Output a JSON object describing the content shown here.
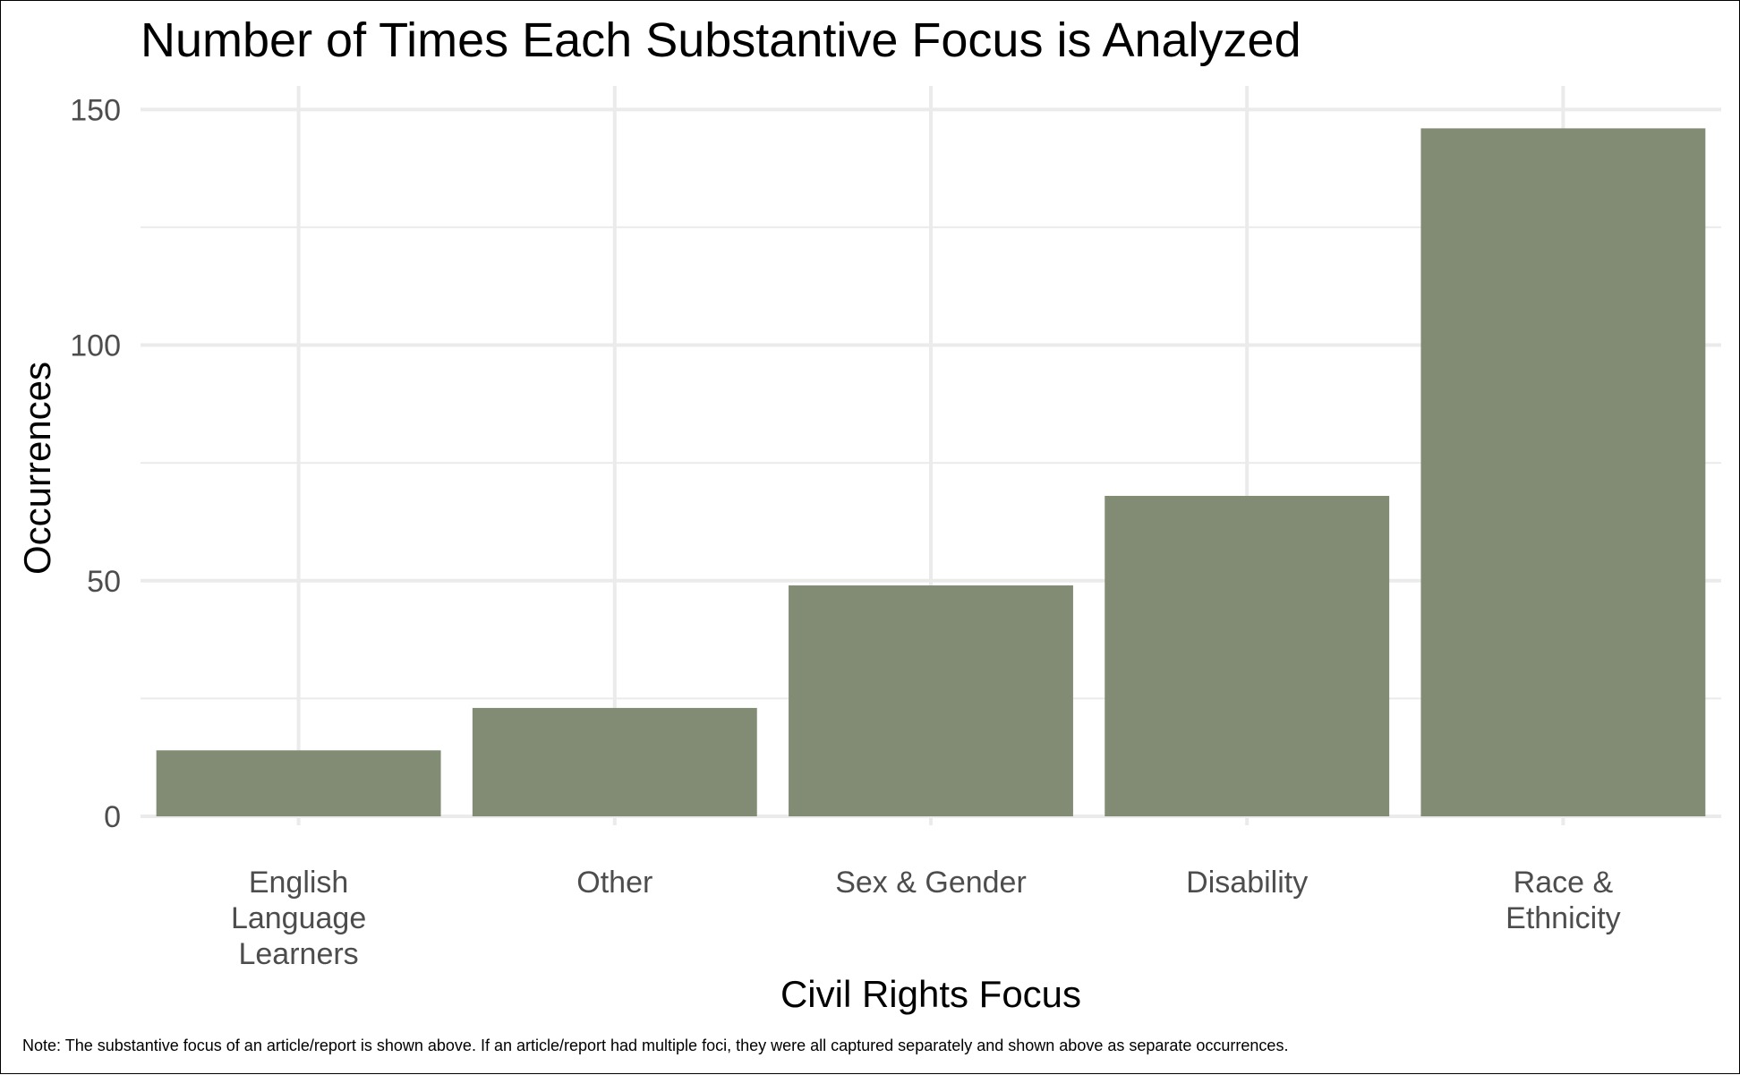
{
  "chart_data": {
    "type": "bar",
    "title": "Number of Times Each Substantive Focus is Analyzed",
    "xlabel": "Civil Rights Focus",
    "ylabel": "Occurrences",
    "categories": [
      [
        "English",
        "Language",
        "Learners"
      ],
      [
        "Other"
      ],
      [
        "Sex & Gender"
      ],
      [
        "Disability"
      ],
      [
        "Race &",
        "Ethnicity"
      ]
    ],
    "values": [
      14,
      23,
      49,
      68,
      146
    ],
    "ylim": [
      0,
      155
    ],
    "y_ticks": [
      0,
      50,
      100,
      150
    ],
    "y_minor_ticks": [
      25,
      75,
      125
    ],
    "grid": true,
    "bar_color": "#828c75",
    "grid_color": "#ebebeb",
    "note": "Note: The substantive focus of an article/report is shown above. If an article/report had multiple foci, they were all captured separately and shown above as separate occurrences."
  }
}
